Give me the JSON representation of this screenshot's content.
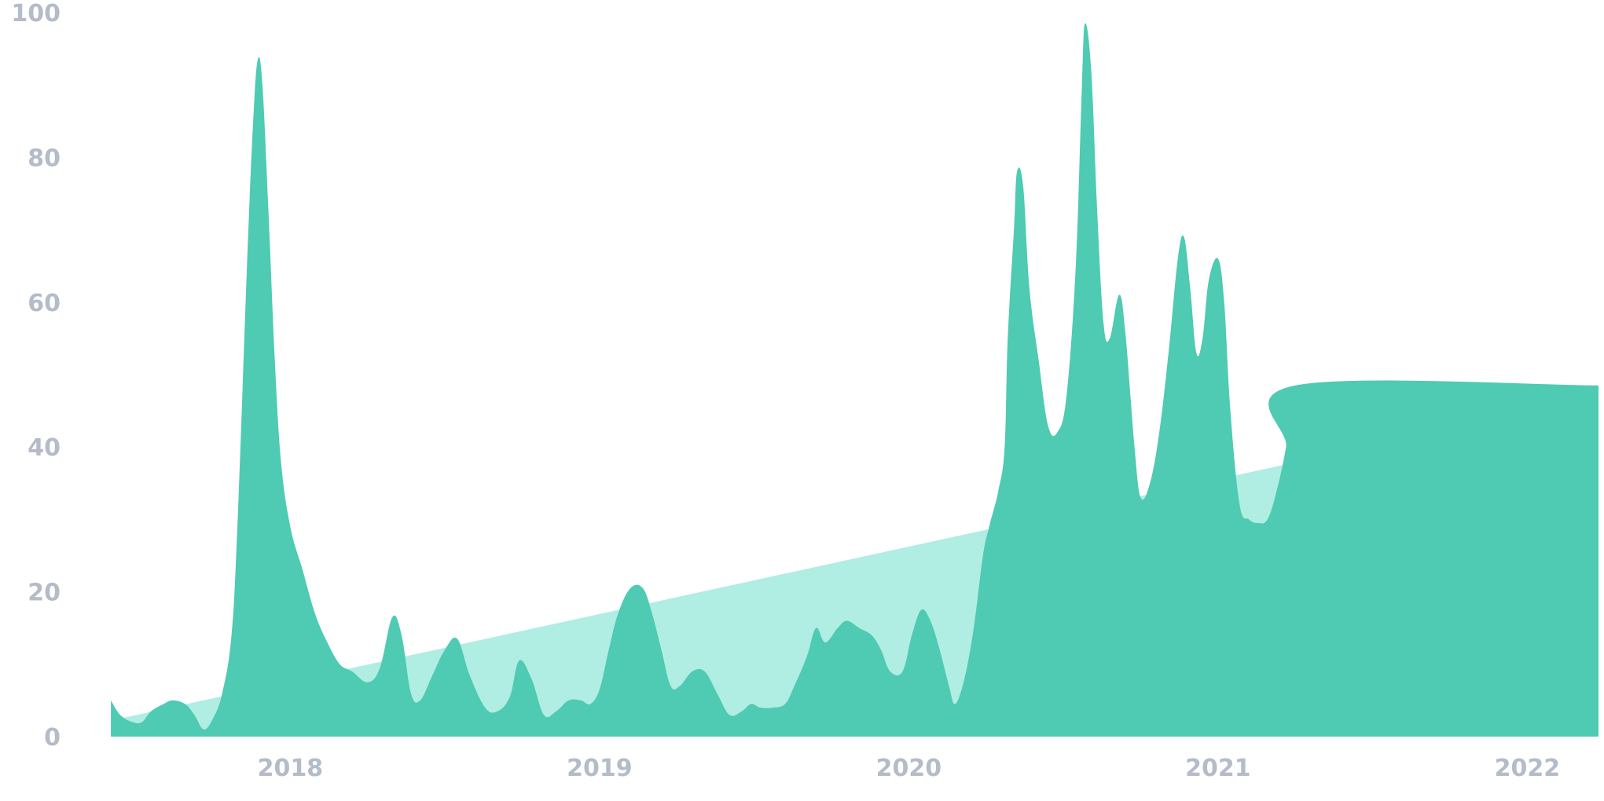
{
  "chart_data": {
    "type": "area",
    "title": "",
    "xlabel": "",
    "ylabel": "",
    "ylim": [
      0,
      100
    ],
    "xlim": [
      2017.42,
      2022.33
    ],
    "grid": false,
    "legend": "none",
    "yticks": [
      "0",
      "20",
      "40",
      "60",
      "80",
      "100"
    ],
    "yticks_values": [
      0,
      20,
      40,
      60,
      80,
      100
    ],
    "xticks": [
      "2018",
      "2019",
      "2020",
      "2021",
      "2022"
    ],
    "xticks_values": [
      2018,
      2019,
      2020,
      2021,
      2022
    ],
    "colors": {
      "interest": "#4ecbb2",
      "trend": "#b0ede3",
      "tick_text": "#b3bcc8",
      "background": "#ffffff"
    },
    "series": [
      {
        "values": [
          [
            2017.42,
            5
          ],
          [
            2017.45,
            3
          ],
          [
            2017.49,
            2
          ],
          [
            2017.52,
            2
          ],
          [
            2017.55,
            3.5
          ],
          [
            2017.59,
            4.5
          ],
          [
            2017.62,
            5
          ],
          [
            2017.66,
            4.5
          ],
          [
            2017.69,
            3
          ],
          [
            2017.72,
            1
          ],
          [
            2017.75,
            2.5
          ],
          [
            2017.78,
            6
          ],
          [
            2017.81,
            14
          ],
          [
            2017.83,
            30
          ],
          [
            2017.86,
            65
          ],
          [
            2017.88,
            85
          ],
          [
            2017.895,
            93.5
          ],
          [
            2017.91,
            90
          ],
          [
            2017.93,
            72
          ],
          [
            2017.95,
            52
          ],
          [
            2017.97,
            38
          ],
          [
            2018.0,
            29
          ],
          [
            2018.04,
            23
          ],
          [
            2018.08,
            17
          ],
          [
            2018.12,
            13
          ],
          [
            2018.16,
            10
          ],
          [
            2018.2,
            9
          ],
          [
            2018.25,
            7.5
          ],
          [
            2018.29,
            9.5
          ],
          [
            2018.33,
            16.5
          ],
          [
            2018.36,
            14
          ],
          [
            2018.39,
            6
          ],
          [
            2018.42,
            5
          ],
          [
            2018.46,
            8.5
          ],
          [
            2018.5,
            12
          ],
          [
            2018.54,
            13.5
          ],
          [
            2018.58,
            8.5
          ],
          [
            2018.63,
            4
          ],
          [
            2018.67,
            3.5
          ],
          [
            2018.71,
            5.5
          ],
          [
            2018.74,
            10.5
          ],
          [
            2018.78,
            8
          ],
          [
            2018.82,
            3
          ],
          [
            2018.86,
            3.5
          ],
          [
            2018.9,
            5
          ],
          [
            2018.94,
            5
          ],
          [
            2018.97,
            4.5
          ],
          [
            2019.0,
            6.5
          ],
          [
            2019.03,
            12
          ],
          [
            2019.06,
            17
          ],
          [
            2019.1,
            20.5
          ],
          [
            2019.14,
            20.5
          ],
          [
            2019.17,
            17
          ],
          [
            2019.2,
            12
          ],
          [
            2019.23,
            7
          ],
          [
            2019.26,
            7
          ],
          [
            2019.3,
            9
          ],
          [
            2019.34,
            9
          ],
          [
            2019.38,
            6
          ],
          [
            2019.42,
            3
          ],
          [
            2019.46,
            3.5
          ],
          [
            2019.49,
            4.5
          ],
          [
            2019.52,
            4
          ],
          [
            2019.56,
            4
          ],
          [
            2019.6,
            4.5
          ],
          [
            2019.63,
            7
          ],
          [
            2019.67,
            11
          ],
          [
            2019.7,
            15
          ],
          [
            2019.73,
            13
          ],
          [
            2019.77,
            15
          ],
          [
            2019.8,
            16
          ],
          [
            2019.84,
            15
          ],
          [
            2019.88,
            14
          ],
          [
            2019.91,
            12
          ],
          [
            2019.94,
            9
          ],
          [
            2019.98,
            9
          ],
          [
            2020.01,
            14
          ],
          [
            2020.04,
            17.5
          ],
          [
            2020.07,
            16
          ],
          [
            2020.1,
            12
          ],
          [
            2020.13,
            7
          ],
          [
            2020.15,
            4.5
          ],
          [
            2020.18,
            8
          ],
          [
            2020.21,
            15
          ],
          [
            2020.24,
            25
          ],
          [
            2020.26,
            29
          ],
          [
            2020.29,
            34
          ],
          [
            2020.31,
            40
          ],
          [
            2020.32,
            55
          ],
          [
            2020.34,
            70
          ],
          [
            2020.35,
            78
          ],
          [
            2020.37,
            76
          ],
          [
            2020.39,
            62
          ],
          [
            2020.42,
            52
          ],
          [
            2020.45,
            43
          ],
          [
            2020.48,
            42
          ],
          [
            2020.51,
            47
          ],
          [
            2020.54,
            65
          ],
          [
            2020.56,
            90
          ],
          [
            2020.57,
            98.5
          ],
          [
            2020.59,
            92
          ],
          [
            2020.61,
            72
          ],
          [
            2020.63,
            57
          ],
          [
            2020.65,
            55
          ],
          [
            2020.68,
            61
          ],
          [
            2020.7,
            56
          ],
          [
            2020.73,
            40
          ],
          [
            2020.75,
            33
          ],
          [
            2020.78,
            35
          ],
          [
            2020.81,
            42
          ],
          [
            2020.84,
            53
          ],
          [
            2020.87,
            66
          ],
          [
            2020.89,
            69
          ],
          [
            2020.91,
            62
          ],
          [
            2020.93,
            53
          ],
          [
            2020.95,
            55
          ],
          [
            2020.97,
            63
          ],
          [
            2021.0,
            66
          ],
          [
            2021.02,
            60
          ],
          [
            2021.04,
            45
          ],
          [
            2021.07,
            32
          ],
          [
            2021.1,
            30
          ],
          [
            2021.13,
            29.5
          ],
          [
            2021.16,
            30
          ],
          [
            2021.19,
            34
          ],
          [
            2021.22,
            40
          ],
          [
            2021.25,
            48.5
          ],
          [
            2022.33,
            48.5
          ]
        ]
      },
      {
        "values": [
          [
            2017.45,
            2.5
          ],
          [
            2022.3,
            47
          ]
        ]
      }
    ]
  }
}
